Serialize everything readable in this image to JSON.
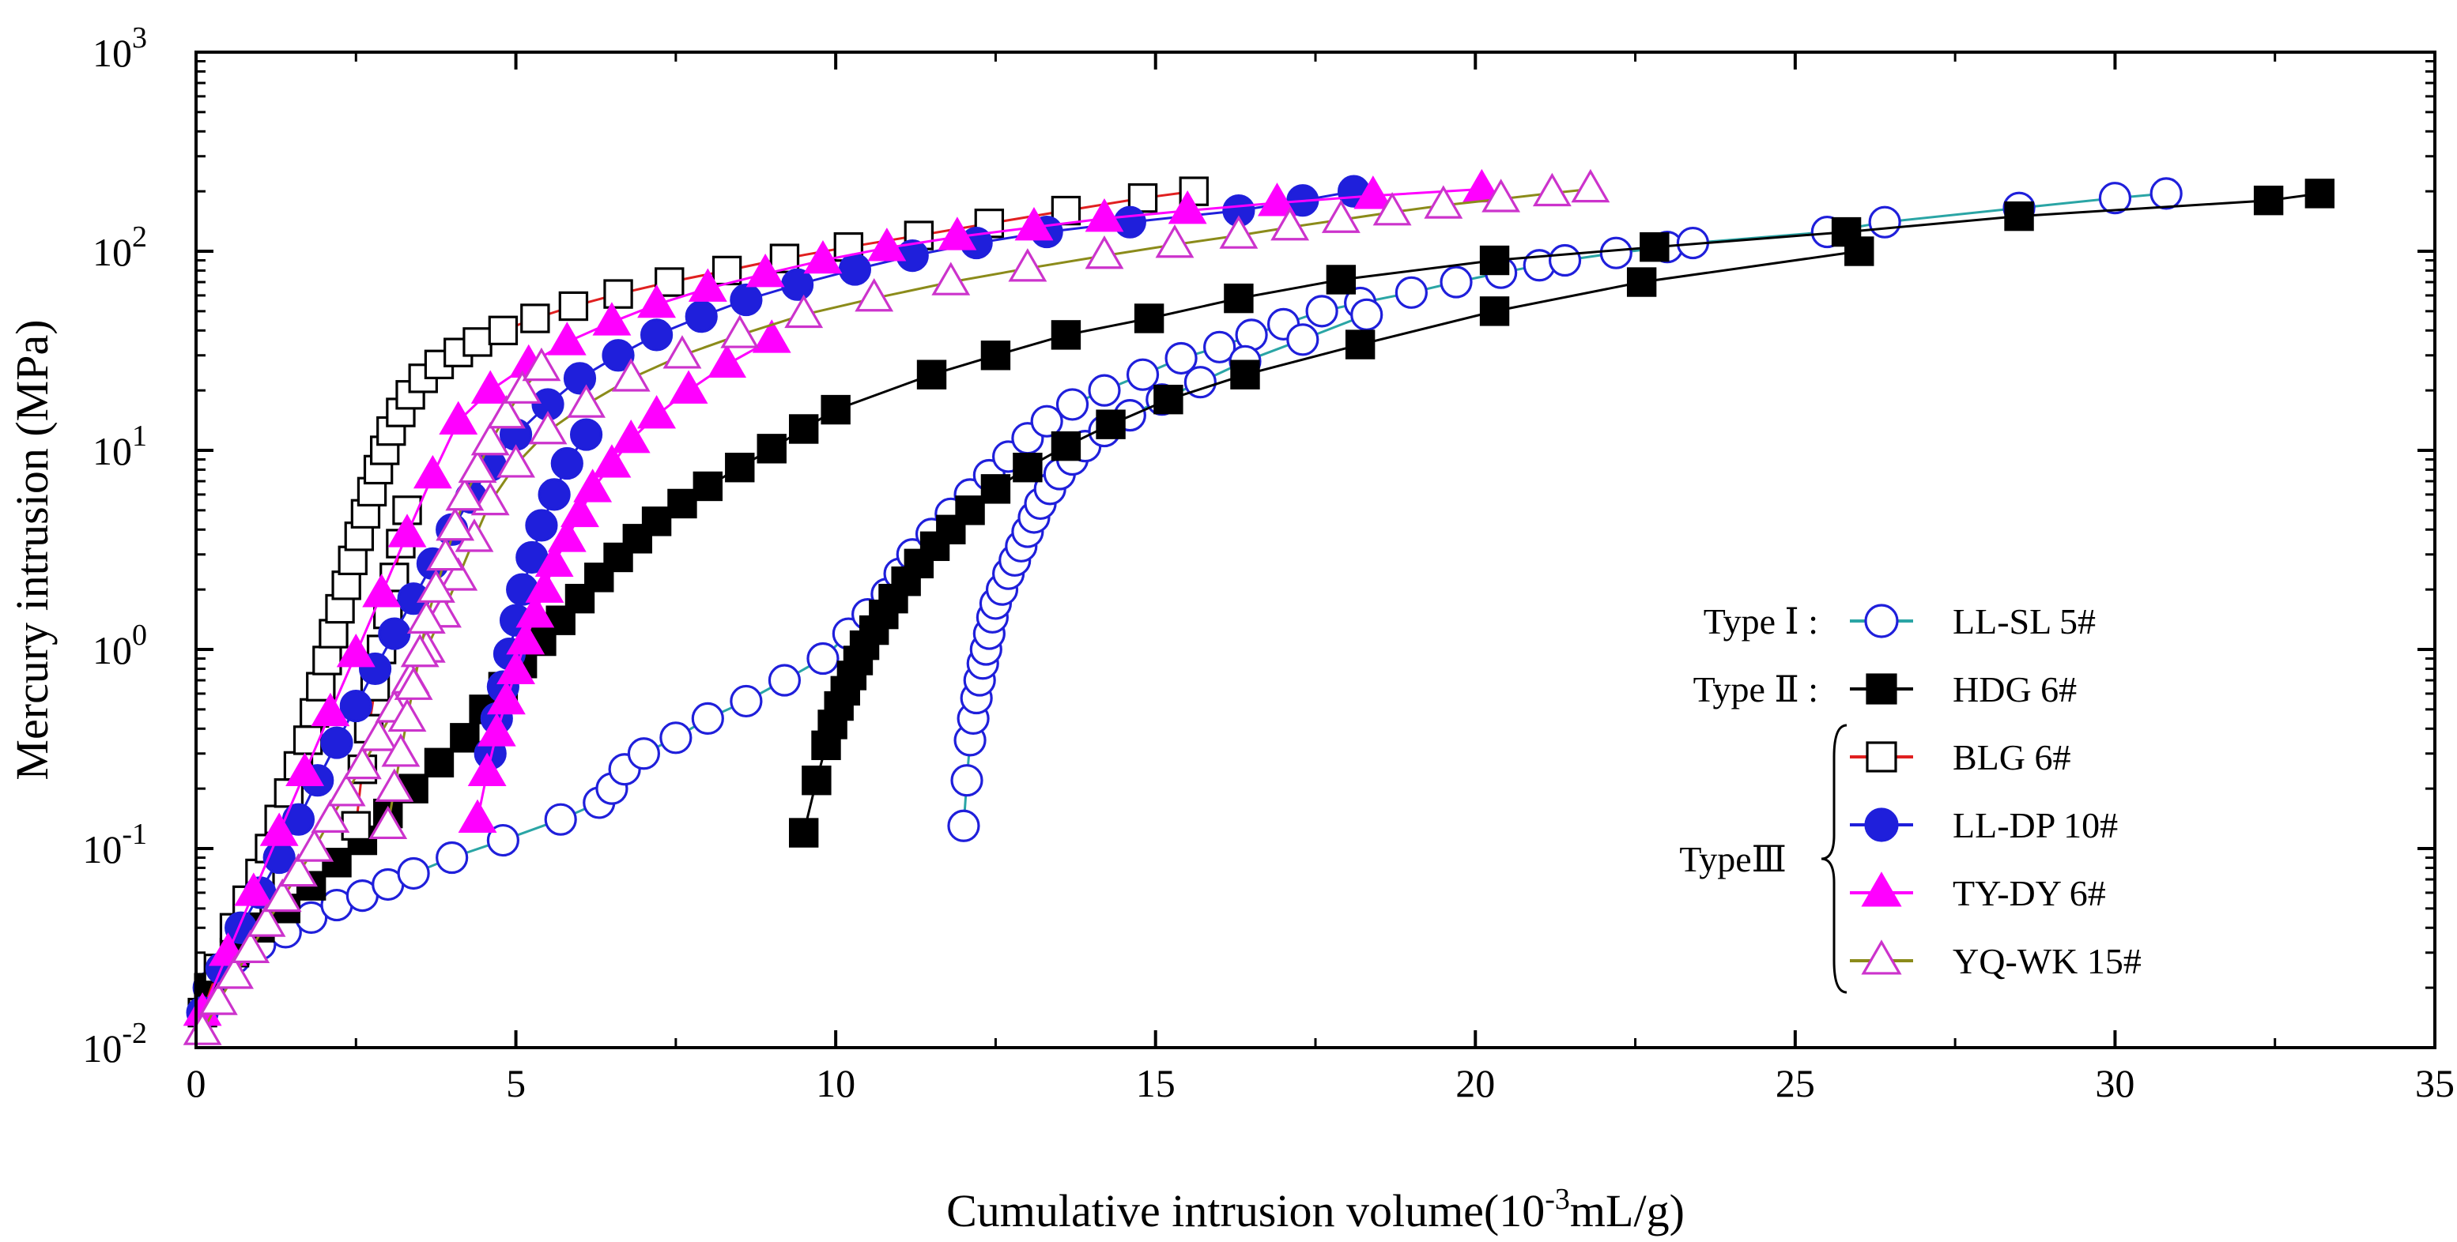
{
  "chart_data": {
    "type": "scatter",
    "title": "",
    "xlabel": {
      "prefix": "Cumulative intrusion volume(10",
      "sup": "-3",
      "suffix": "mL/g)"
    },
    "ylabel": "Mercury intrusion (MPa)",
    "xlim": [
      0,
      35
    ],
    "ylim": [
      0.01,
      1000
    ],
    "yscale": "log",
    "x_ticks": [
      0,
      5,
      10,
      15,
      20,
      25,
      30,
      35
    ],
    "x_tick_labels": [
      "0",
      "5",
      "10",
      "15",
      "20",
      "25",
      "30",
      "35"
    ],
    "y_ticks": [
      {
        "value": 0.01,
        "base": "10",
        "exp": "-2"
      },
      {
        "value": 0.1,
        "base": "10",
        "exp": "-1"
      },
      {
        "value": 1,
        "base": "10",
        "exp": "0"
      },
      {
        "value": 10,
        "base": "10",
        "exp": "1"
      },
      {
        "value": 100,
        "base": "10",
        "exp": "2"
      },
      {
        "value": 1000,
        "base": "10",
        "exp": "3"
      }
    ],
    "legend": {
      "position": "right",
      "groups": [
        {
          "label": "Type Ⅰ :",
          "members": [
            "LL-SL 5#"
          ]
        },
        {
          "label": "Type Ⅱ :",
          "members": [
            "HDG 6#"
          ]
        },
        {
          "label": "TypeⅢ",
          "members": [
            "BLG 6#",
            "LL-DP 10#",
            "TY-DY 6#",
            "YQ-WK 15#"
          ]
        }
      ]
    },
    "series": [
      {
        "name": "LL-SL 5#",
        "marker": "circle",
        "filled": false,
        "marker_color": "#1f1fdb",
        "line_color": "#2aa5a5",
        "x": [
          0.2,
          0.6,
          1.0,
          1.4,
          1.8,
          2.2,
          2.6,
          3.0,
          3.4,
          4.0,
          4.8,
          5.7,
          6.3,
          6.5,
          6.7,
          7.0,
          7.5,
          8.0,
          8.6,
          9.2,
          9.8,
          10.2,
          10.5,
          10.8,
          11.0,
          11.2,
          11.5,
          11.8,
          12.1,
          12.4,
          12.7,
          13.0,
          13.3,
          13.7,
          14.2,
          14.8,
          15.4,
          16.0,
          16.5,
          17.0,
          17.6,
          18.2,
          19.0,
          19.7,
          20.4,
          21.0,
          21.4,
          22.2,
          23.0,
          23.4,
          25.5,
          26.4,
          28.5,
          30.0,
          30.8
        ],
        "y": [
          0.02,
          0.028,
          0.033,
          0.038,
          0.045,
          0.052,
          0.058,
          0.066,
          0.075,
          0.09,
          0.11,
          0.14,
          0.17,
          0.2,
          0.25,
          0.3,
          0.36,
          0.45,
          0.55,
          0.7,
          0.9,
          1.2,
          1.5,
          1.9,
          2.4,
          3.0,
          3.8,
          4.8,
          6.0,
          7.5,
          9.3,
          11.5,
          14,
          17,
          20,
          24,
          29,
          33,
          38,
          43,
          50,
          55,
          62,
          70,
          78,
          85,
          90,
          98,
          105,
          110,
          125,
          140,
          165,
          185,
          195
        ]
      },
      {
        "name": "LL-SL 5# (branch)",
        "marker": "circle",
        "filled": false,
        "marker_color": "#1f1fdb",
        "line_color": "#2aa5a5",
        "x": [
          12.0,
          12.05,
          12.1,
          12.15,
          12.2,
          12.25,
          12.3,
          12.35,
          12.4,
          12.45,
          12.5,
          12.6,
          12.7,
          12.8,
          12.9,
          13.0,
          13.1,
          13.2,
          13.35,
          13.5,
          13.7,
          13.9,
          14.2,
          14.6,
          15.1,
          15.7,
          16.4,
          17.3,
          18.3
        ],
        "y": [
          0.13,
          0.22,
          0.35,
          0.45,
          0.57,
          0.7,
          0.85,
          1.0,
          1.2,
          1.45,
          1.7,
          2.0,
          2.4,
          2.8,
          3.3,
          3.9,
          4.6,
          5.4,
          6.4,
          7.6,
          9.0,
          10.5,
          12.5,
          15,
          18,
          22,
          28,
          36,
          48
        ]
      },
      {
        "name": "HDG 6#",
        "marker": "square",
        "filled": true,
        "marker_color": "#000000",
        "line_color": "#000000",
        "x": [
          0.2,
          0.6,
          1.0,
          1.4,
          1.8,
          2.2,
          2.6,
          3.0,
          3.4,
          3.8,
          4.2,
          4.5,
          4.8,
          5.1,
          5.4,
          5.7,
          6.0,
          6.3,
          6.6,
          6.9,
          7.2,
          7.6,
          8.0,
          8.5,
          9.0,
          9.5,
          10.0,
          11.5,
          12.5,
          13.6,
          14.9,
          16.3,
          17.9,
          20.3,
          22.8,
          25.8,
          28.5,
          32.4,
          33.2
        ],
        "y": [
          0.02,
          0.03,
          0.04,
          0.05,
          0.065,
          0.085,
          0.11,
          0.15,
          0.2,
          0.27,
          0.36,
          0.5,
          0.65,
          0.85,
          1.1,
          1.4,
          1.8,
          2.3,
          2.9,
          3.6,
          4.4,
          5.4,
          6.6,
          8.2,
          10.2,
          12.8,
          16,
          24,
          30,
          38,
          46,
          58,
          72,
          90,
          105,
          125,
          150,
          180,
          195
        ]
      },
      {
        "name": "HDG 6# (branch)",
        "marker": "square",
        "filled": true,
        "marker_color": "#000000",
        "line_color": "#000000",
        "x": [
          9.5,
          9.7,
          9.85,
          9.95,
          10.05,
          10.15,
          10.25,
          10.35,
          10.45,
          10.6,
          10.75,
          10.9,
          11.1,
          11.3,
          11.55,
          11.8,
          12.1,
          12.5,
          13.0,
          13.6,
          14.3,
          15.2,
          16.4,
          18.2,
          20.3,
          22.6,
          26.0
        ],
        "y": [
          0.12,
          0.22,
          0.33,
          0.42,
          0.52,
          0.62,
          0.74,
          0.88,
          1.05,
          1.25,
          1.5,
          1.8,
          2.2,
          2.7,
          3.3,
          4.0,
          5.0,
          6.4,
          8.2,
          10.5,
          13.5,
          18,
          24,
          34,
          50,
          70,
          100
        ]
      },
      {
        "name": "BLG 6#",
        "marker": "square",
        "filled": false,
        "marker_color": "#000000",
        "line_color": "#e02020",
        "x": [
          0.1,
          0.35,
          0.6,
          0.8,
          1.0,
          1.15,
          1.3,
          1.45,
          1.6,
          1.75,
          1.85,
          1.95,
          2.05,
          2.15,
          2.25,
          2.35,
          2.45,
          2.55,
          2.65,
          2.75,
          2.85,
          2.95,
          3.05,
          3.2,
          3.35,
          3.55,
          3.8,
          4.1,
          4.4,
          4.8,
          5.3,
          5.9,
          6.6,
          7.4,
          8.3,
          9.2,
          10.2,
          11.3,
          12.4,
          13.6,
          14.8,
          15.6
        ],
        "y": [
          0.015,
          0.025,
          0.04,
          0.055,
          0.075,
          0.1,
          0.14,
          0.19,
          0.26,
          0.35,
          0.48,
          0.65,
          0.88,
          1.2,
          1.6,
          2.1,
          2.8,
          3.7,
          4.8,
          6.2,
          8.0,
          10,
          12.5,
          15.5,
          19,
          23,
          27,
          31,
          35,
          40,
          46,
          53,
          61,
          70,
          80,
          92,
          105,
          120,
          138,
          160,
          185,
          200
        ]
      },
      {
        "name": "BLG 6# (branch)",
        "marker": "square",
        "filled": false,
        "marker_color": "#000000",
        "line_color": "#e02020",
        "x": [
          2.5,
          2.6,
          2.7,
          2.8,
          2.9,
          3.0,
          3.1,
          3.2,
          3.3
        ],
        "y": [
          0.13,
          0.25,
          0.4,
          0.65,
          1.0,
          1.5,
          2.3,
          3.4,
          5.0
        ]
      },
      {
        "name": "LL-DP 10#",
        "marker": "circle",
        "filled": true,
        "marker_color": "#1f1fdb",
        "line_color": "#1f1fdb",
        "x": [
          0.1,
          0.4,
          0.7,
          1.0,
          1.3,
          1.6,
          1.9,
          2.2,
          2.5,
          2.8,
          3.1,
          3.4,
          3.7,
          4.0,
          4.3,
          4.6,
          5.0,
          5.5,
          6.0,
          6.6,
          7.2,
          7.9,
          8.6,
          9.4,
          10.3,
          11.2,
          12.2,
          13.3,
          14.6,
          16.3,
          17.3,
          18.1
        ],
        "y": [
          0.015,
          0.025,
          0.04,
          0.06,
          0.09,
          0.14,
          0.22,
          0.34,
          0.52,
          0.8,
          1.2,
          1.8,
          2.7,
          4.0,
          5.8,
          8.4,
          12,
          17,
          23,
          30,
          38,
          47,
          57,
          68,
          81,
          95,
          110,
          125,
          140,
          160,
          180,
          200
        ]
      },
      {
        "name": "LL-DP 10# (branch)",
        "marker": "circle",
        "filled": true,
        "marker_color": "#1f1fdb",
        "line_color": "#1f1fdb",
        "x": [
          4.6,
          4.7,
          4.8,
          4.9,
          5.0,
          5.1,
          5.25,
          5.4,
          5.6,
          5.8,
          6.1
        ],
        "y": [
          0.3,
          0.45,
          0.65,
          0.95,
          1.4,
          2.0,
          2.9,
          4.2,
          6.0,
          8.6,
          12
        ]
      },
      {
        "name": "TY-DY 6#",
        "marker": "triangle",
        "filled": true,
        "marker_color": "#ff00ff",
        "line_color": "#ff00ff",
        "x": [
          0.1,
          0.5,
          0.9,
          1.3,
          1.7,
          2.1,
          2.5,
          2.9,
          3.3,
          3.7,
          4.1,
          4.6,
          5.2,
          5.8,
          6.5,
          7.2,
          8.0,
          8.9,
          9.8,
          10.8,
          11.9,
          13.1,
          14.2,
          15.5,
          16.9,
          18.4,
          20.1
        ],
        "y": [
          0.015,
          0.03,
          0.06,
          0.12,
          0.24,
          0.48,
          0.95,
          1.9,
          3.8,
          7.5,
          14,
          20,
          27,
          35,
          44,
          54,
          65,
          77,
          90,
          104,
          118,
          132,
          146,
          160,
          175,
          190,
          205
        ]
      },
      {
        "name": "TY-DY 6# (branch)",
        "marker": "triangle",
        "filled": true,
        "marker_color": "#ff00ff",
        "line_color": "#ff00ff",
        "x": [
          4.4,
          4.55,
          4.7,
          4.85,
          5.0,
          5.15,
          5.3,
          5.45,
          5.6,
          5.8,
          6.0,
          6.2,
          6.5,
          6.8,
          7.2,
          7.7,
          8.3,
          9.0
        ],
        "y": [
          0.14,
          0.24,
          0.38,
          0.55,
          0.78,
          1.1,
          1.5,
          2.0,
          2.7,
          3.6,
          4.8,
          6.4,
          8.5,
          11.3,
          15,
          20,
          27,
          36
        ]
      },
      {
        "name": "YQ-WK 15#",
        "marker": "triangle",
        "filled": false,
        "marker_color": "#cc33cc",
        "line_color": "#8b8b1a",
        "x": [
          0.1,
          0.35,
          0.6,
          0.85,
          1.1,
          1.35,
          1.6,
          1.85,
          2.1,
          2.35,
          2.6,
          2.85,
          3.1,
          3.35,
          3.6,
          3.85,
          4.1,
          4.35,
          4.6,
          5.0,
          5.5,
          6.1,
          6.8,
          7.6,
          8.5,
          9.5,
          10.6,
          11.8,
          13.0,
          14.2,
          15.3,
          16.3,
          17.1,
          17.9,
          18.7,
          19.5,
          20.4,
          21.2,
          21.8
        ],
        "y": [
          0.012,
          0.017,
          0.023,
          0.031,
          0.042,
          0.056,
          0.075,
          0.1,
          0.14,
          0.19,
          0.26,
          0.36,
          0.5,
          0.7,
          1.0,
          1.5,
          2.3,
          3.6,
          5.5,
          8.5,
          12.5,
          17,
          23,
          30,
          38,
          48,
          58,
          70,
          82,
          95,
          108,
          120,
          132,
          144,
          157,
          170,
          183,
          196,
          205
        ]
      },
      {
        "name": "YQ-WK 15# (branch)",
        "marker": "triangle",
        "filled": false,
        "marker_color": "#cc33cc",
        "line_color": "#8b8b1a",
        "x": [
          3.0,
          3.1,
          3.2,
          3.3,
          3.4,
          3.5,
          3.6,
          3.75,
          3.9,
          4.05,
          4.2,
          4.4,
          4.6,
          4.85,
          5.1,
          5.4
        ],
        "y": [
          0.13,
          0.2,
          0.3,
          0.45,
          0.65,
          0.95,
          1.4,
          2.0,
          2.9,
          4.1,
          5.8,
          8.0,
          11,
          15,
          20,
          26
        ]
      }
    ]
  }
}
